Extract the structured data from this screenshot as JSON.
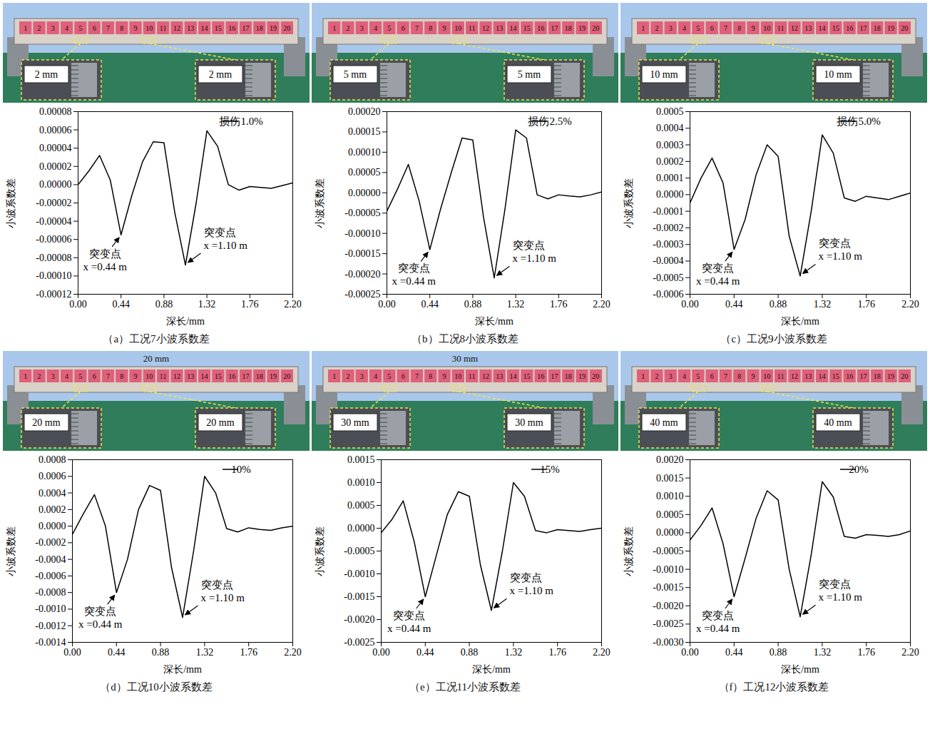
{
  "chart_data": [
    {
      "type": "line",
      "caption": "（a）工况7小波系数差",
      "x_label": "深长/mm",
      "y_label": "小波系数差",
      "x": [
        0,
        0.11,
        0.22,
        0.33,
        0.44,
        0.55,
        0.66,
        0.77,
        0.88,
        0.99,
        1.1,
        1.21,
        1.32,
        1.43,
        1.54,
        1.65,
        1.76,
        1.87,
        1.98,
        2.09,
        2.2
      ],
      "series": [
        {
          "name": "损伤1.0%",
          "color": "#000000",
          "values": [
            0.0,
            1.5e-05,
            3.2e-05,
            5e-06,
            -5.5e-05,
            -1.2e-05,
            2.5e-05,
            4.7e-05,
            4.6e-05,
            -3e-05,
            -8.8e-05,
            -2e-05,
            5.9e-05,
            4.2e-05,
            0.0,
            -6e-06,
            -2e-06,
            -3e-06,
            -4e-06,
            -1e-06,
            2e-06
          ]
        }
      ],
      "xlim": [
        0,
        2.2
      ],
      "xticks": [
        {
          "value": 0,
          "label": "0.00"
        },
        {
          "value": 0.44,
          "label": "0.44"
        },
        {
          "value": 0.88,
          "label": "0.88"
        },
        {
          "value": 1.32,
          "label": "1.32"
        },
        {
          "value": 1.76,
          "label": "1.76"
        },
        {
          "value": 2.2,
          "label": "2.20"
        }
      ],
      "ylim": [
        -0.00012,
        8e-05
      ],
      "yticks": [
        {
          "value": -0.00012,
          "label": "-0.00012"
        },
        {
          "value": -0.0001,
          "label": "-0.00010"
        },
        {
          "value": -8e-05,
          "label": "-0.00008"
        },
        {
          "value": -6e-05,
          "label": "-0.00006"
        },
        {
          "value": -4e-05,
          "label": "-0.00004"
        },
        {
          "value": -2e-05,
          "label": "-0.00002"
        },
        {
          "value": 0,
          "label": "0.00000"
        },
        {
          "value": 2e-05,
          "label": "0.00002"
        },
        {
          "value": 4e-05,
          "label": "0.00004"
        },
        {
          "value": 6e-05,
          "label": "0.00006"
        },
        {
          "value": 8e-05,
          "label": "0.00008"
        }
      ],
      "legend": "top-right",
      "annotations": [
        {
          "text": "突变点",
          "detail": "x =0.44 m",
          "x": 0.44
        },
        {
          "text": "突变点",
          "detail": "x =1.10 m",
          "x": 1.1
        }
      ],
      "photo": {
        "segments": [
          1,
          2,
          3,
          4,
          5,
          6,
          7,
          8,
          9,
          10,
          11,
          12,
          13,
          14,
          15,
          16,
          17,
          18,
          19,
          20
        ],
        "marked_segments": [
          5,
          10
        ],
        "inset_labels": [
          "2 mm",
          "2 mm"
        ]
      }
    },
    {
      "type": "line",
      "caption": "（b）工况8小波系数差",
      "x_label": "深长/mm",
      "y_label": "小波系数差",
      "x": [
        0,
        0.11,
        0.22,
        0.33,
        0.44,
        0.55,
        0.66,
        0.77,
        0.88,
        0.99,
        1.1,
        1.21,
        1.32,
        1.43,
        1.54,
        1.65,
        1.76,
        1.87,
        1.98,
        2.09,
        2.2
      ],
      "series": [
        {
          "name": "损伤2.5%",
          "color": "#000000",
          "values": [
            -4.5e-05,
            1e-05,
            7e-05,
            -2e-05,
            -0.00014,
            -4e-05,
            5e-05,
            0.000135,
            0.00013,
            -6e-05,
            -0.00021,
            -4e-05,
            0.000155,
            0.000135,
            -5e-06,
            -1.5e-05,
            -5e-06,
            -8e-06,
            -1e-05,
            -5e-06,
            2e-06
          ]
        }
      ],
      "xlim": [
        0,
        2.2
      ],
      "xticks": [
        {
          "value": 0,
          "label": "0.00"
        },
        {
          "value": 0.44,
          "label": "0.44"
        },
        {
          "value": 0.88,
          "label": "0.88"
        },
        {
          "value": 1.32,
          "label": "1.32"
        },
        {
          "value": 1.76,
          "label": "1.76"
        },
        {
          "value": 2.2,
          "label": "2.20"
        }
      ],
      "ylim": [
        -0.00025,
        0.0002
      ],
      "yticks": [
        {
          "value": -0.00025,
          "label": "-0.00025"
        },
        {
          "value": -0.0002,
          "label": "-0.00020"
        },
        {
          "value": -0.00015,
          "label": "-0.00015"
        },
        {
          "value": -0.0001,
          "label": "-0.00010"
        },
        {
          "value": -5e-05,
          "label": "-0.00005"
        },
        {
          "value": 0,
          "label": "0.00000"
        },
        {
          "value": 5e-05,
          "label": "0.00005"
        },
        {
          "value": 0.0001,
          "label": "0.00010"
        },
        {
          "value": 0.00015,
          "label": "0.00015"
        },
        {
          "value": 0.0002,
          "label": "0.00020"
        }
      ],
      "legend": "top-right",
      "annotations": [
        {
          "text": "突变点",
          "detail": "x =0.44 m",
          "x": 0.44
        },
        {
          "text": "突变点",
          "detail": "x =1.10 m",
          "x": 1.1
        }
      ],
      "photo": {
        "segments": [
          1,
          2,
          3,
          4,
          5,
          6,
          7,
          8,
          9,
          10,
          11,
          12,
          13,
          14,
          15,
          16,
          17,
          18,
          19,
          20
        ],
        "marked_segments": [
          5,
          10
        ],
        "inset_labels": [
          "5 mm",
          "5 mm"
        ]
      }
    },
    {
      "type": "line",
      "caption": "（c）工况9小波系数差",
      "x_label": "深长/mm",
      "y_label": "小波系数差",
      "x": [
        0,
        0.11,
        0.22,
        0.33,
        0.44,
        0.55,
        0.66,
        0.77,
        0.88,
        0.99,
        1.1,
        1.21,
        1.32,
        1.43,
        1.54,
        1.65,
        1.76,
        1.87,
        1.98,
        2.09,
        2.2
      ],
      "series": [
        {
          "name": "损伤5.0%",
          "color": "#000000",
          "values": [
            -5e-05,
            0.0001,
            0.00022,
            7e-05,
            -0.00033,
            -0.00015,
            0.00012,
            0.0003,
            0.00023,
            -0.00025,
            -0.00049,
            -0.0001,
            0.00036,
            0.00025,
            -2e-05,
            -4e-05,
            -1e-05,
            -2e-05,
            -3e-05,
            -1e-05,
            1e-05
          ]
        }
      ],
      "xlim": [
        0,
        2.2
      ],
      "xticks": [
        {
          "value": 0,
          "label": "0.00"
        },
        {
          "value": 0.44,
          "label": "0.44"
        },
        {
          "value": 0.88,
          "label": "0.88"
        },
        {
          "value": 1.32,
          "label": "1.32"
        },
        {
          "value": 1.76,
          "label": "1.76"
        },
        {
          "value": 2.2,
          "label": "2.20"
        }
      ],
      "ylim": [
        -0.0006,
        0.0005
      ],
      "yticks": [
        {
          "value": -0.0006,
          "label": "-0.0006"
        },
        {
          "value": -0.0005,
          "label": "-0.0005"
        },
        {
          "value": -0.0004,
          "label": "-0.0004"
        },
        {
          "value": -0.0003,
          "label": "-0.0003"
        },
        {
          "value": -0.0002,
          "label": "-0.0002"
        },
        {
          "value": -0.0001,
          "label": "-0.0001"
        },
        {
          "value": 0,
          "label": "0.0000"
        },
        {
          "value": 0.0001,
          "label": "0.0001"
        },
        {
          "value": 0.0002,
          "label": "0.0002"
        },
        {
          "value": 0.0003,
          "label": "0.0003"
        },
        {
          "value": 0.0004,
          "label": "0.0004"
        },
        {
          "value": 0.0005,
          "label": "0.0005"
        }
      ],
      "legend": "top-right",
      "annotations": [
        {
          "text": "突变点",
          "detail": "x =0.44 m",
          "x": 0.44
        },
        {
          "text": "突变点",
          "detail": "x =1.10 m",
          "x": 1.1
        }
      ],
      "photo": {
        "segments": [
          1,
          2,
          3,
          4,
          5,
          6,
          7,
          8,
          9,
          10,
          11,
          12,
          13,
          14,
          15,
          16,
          17,
          18,
          19,
          20
        ],
        "marked_segments": [
          5,
          10
        ],
        "inset_labels": [
          "10 mm",
          "10 mm"
        ]
      }
    },
    {
      "type": "line",
      "caption": "（d）工况10小波系数差",
      "x_label": "深长/mm",
      "y_label": "小波系数差",
      "x": [
        0,
        0.11,
        0.22,
        0.33,
        0.44,
        0.55,
        0.66,
        0.77,
        0.88,
        0.99,
        1.1,
        1.21,
        1.32,
        1.43,
        1.54,
        1.65,
        1.76,
        1.87,
        1.98,
        2.09,
        2.2
      ],
      "series": [
        {
          "name": "10%",
          "color": "#000000",
          "values": [
            -0.0001,
            0.00015,
            0.00038,
            0.0,
            -0.0008,
            -0.0004,
            0.0002,
            0.00049,
            0.00043,
            -0.0005,
            -0.0011,
            -0.0003,
            0.0006,
            0.0004,
            -3e-05,
            -7e-05,
            -2e-05,
            -4e-05,
            -5e-05,
            -2e-05,
            0.0
          ]
        }
      ],
      "xlim": [
        0,
        2.2
      ],
      "xticks": [
        {
          "value": 0,
          "label": "0.00"
        },
        {
          "value": 0.44,
          "label": "0.44"
        },
        {
          "value": 0.88,
          "label": "0.88"
        },
        {
          "value": 1.32,
          "label": "1.32"
        },
        {
          "value": 1.76,
          "label": "1.76"
        },
        {
          "value": 2.2,
          "label": "2.20"
        }
      ],
      "ylim": [
        -0.0014,
        0.0008
      ],
      "yticks": [
        {
          "value": -0.0014,
          "label": "-0.0014"
        },
        {
          "value": -0.0012,
          "label": "-0.0012"
        },
        {
          "value": -0.001,
          "label": "-0.0010"
        },
        {
          "value": -0.0008,
          "label": "-0.0008"
        },
        {
          "value": -0.0006,
          "label": "-0.0006"
        },
        {
          "value": -0.0004,
          "label": "-0.0004"
        },
        {
          "value": -0.0002,
          "label": "-0.0002"
        },
        {
          "value": 0,
          "label": "0.0000"
        },
        {
          "value": 0.0002,
          "label": "0.0002"
        },
        {
          "value": 0.0004,
          "label": "0.0004"
        },
        {
          "value": 0.0006,
          "label": "0.0006"
        },
        {
          "value": 0.0008,
          "label": "0.0008"
        }
      ],
      "legend": "top-right",
      "annotations": [
        {
          "text": "突变点",
          "detail": "x =0.44 m",
          "x": 0.44
        },
        {
          "text": "突变点",
          "detail": "x =1.10 m",
          "x": 1.1
        }
      ],
      "photo": {
        "segments": [
          1,
          2,
          3,
          4,
          5,
          6,
          7,
          8,
          9,
          10,
          11,
          12,
          13,
          14,
          15,
          16,
          17,
          18,
          19,
          20
        ],
        "marked_segments": [
          5,
          10
        ],
        "inset_labels": [
          "20 mm",
          "20 mm"
        ],
        "top_label": "20 mm"
      }
    },
    {
      "type": "line",
      "caption": "（e）工况11小波系数差",
      "x_label": "深长/mm",
      "y_label": "小波系数差",
      "x": [
        0,
        0.11,
        0.22,
        0.33,
        0.44,
        0.55,
        0.66,
        0.77,
        0.88,
        0.99,
        1.1,
        1.21,
        1.32,
        1.43,
        1.54,
        1.65,
        1.76,
        1.87,
        1.98,
        2.09,
        2.2
      ],
      "series": [
        {
          "name": "15%",
          "color": "#000000",
          "values": [
            -0.0001,
            0.0002,
            0.0006,
            -0.0003,
            -0.0015,
            -0.0006,
            0.0003,
            0.0008,
            0.0007,
            -0.0008,
            -0.0018,
            -0.0005,
            0.001,
            0.0007,
            -5e-05,
            -0.0001,
            -3e-05,
            -5e-05,
            -7e-05,
            -3e-05,
            0.0
          ]
        }
      ],
      "xlim": [
        0,
        2.2
      ],
      "xticks": [
        {
          "value": 0,
          "label": "0.00"
        },
        {
          "value": 0.44,
          "label": "0.44"
        },
        {
          "value": 0.88,
          "label": "0.88"
        },
        {
          "value": 1.32,
          "label": "1.32"
        },
        {
          "value": 1.76,
          "label": "1.76"
        },
        {
          "value": 2.2,
          "label": "2.20"
        }
      ],
      "ylim": [
        -0.0025,
        0.0015
      ],
      "yticks": [
        {
          "value": -0.0025,
          "label": "-0.0025"
        },
        {
          "value": -0.002,
          "label": "-0.0020"
        },
        {
          "value": -0.0015,
          "label": "-0.0015"
        },
        {
          "value": -0.001,
          "label": "-0.0010"
        },
        {
          "value": -0.0005,
          "label": "-0.0005"
        },
        {
          "value": 0,
          "label": "0.0000"
        },
        {
          "value": 0.0005,
          "label": "0.0005"
        },
        {
          "value": 0.001,
          "label": "0.0010"
        },
        {
          "value": 0.0015,
          "label": "0.0015"
        }
      ],
      "legend": "top-right",
      "annotations": [
        {
          "text": "突变点",
          "detail": "x =0.44 m",
          "x": 0.44
        },
        {
          "text": "突变点",
          "detail": "x =1.10 m",
          "x": 1.1
        }
      ],
      "photo": {
        "segments": [
          1,
          2,
          3,
          4,
          5,
          6,
          7,
          8,
          9,
          10,
          11,
          12,
          13,
          14,
          15,
          16,
          17,
          18,
          19,
          20
        ],
        "marked_segments": [
          5,
          10
        ],
        "inset_labels": [
          "30 mm",
          "30 mm"
        ],
        "top_label": "30 mm"
      }
    },
    {
      "type": "line",
      "caption": "（f）工况12小波系数差",
      "x_label": "深长/mm",
      "y_label": "小波系数差",
      "x": [
        0,
        0.11,
        0.22,
        0.33,
        0.44,
        0.55,
        0.66,
        0.77,
        0.88,
        0.99,
        1.1,
        1.21,
        1.32,
        1.43,
        1.54,
        1.65,
        1.76,
        1.87,
        1.98,
        2.09,
        2.2
      ],
      "series": [
        {
          "name": "20%",
          "color": "#000000",
          "values": [
            -0.0002,
            0.0002,
            0.00068,
            -0.0003,
            -0.00175,
            -0.0007,
            0.0004,
            0.00115,
            0.0009,
            -0.001,
            -0.0023,
            -0.0006,
            0.0014,
            0.00098,
            -0.0001,
            -0.00015,
            -5e-05,
            -7e-05,
            -0.0001,
            -5e-05,
            5e-05
          ]
        }
      ],
      "xlim": [
        0,
        2.2
      ],
      "xticks": [
        {
          "value": 0,
          "label": "0.00"
        },
        {
          "value": 0.44,
          "label": "0.44"
        },
        {
          "value": 0.88,
          "label": "0.88"
        },
        {
          "value": 1.32,
          "label": "1.32"
        },
        {
          "value": 1.76,
          "label": "1.76"
        },
        {
          "value": 2.2,
          "label": "2.20"
        }
      ],
      "ylim": [
        -0.003,
        0.002
      ],
      "yticks": [
        {
          "value": -0.003,
          "label": "-0.0030"
        },
        {
          "value": -0.0025,
          "label": "-0.0025"
        },
        {
          "value": -0.002,
          "label": "-0.0020"
        },
        {
          "value": -0.0015,
          "label": "-0.0015"
        },
        {
          "value": -0.001,
          "label": "-0.0010"
        },
        {
          "value": -0.0005,
          "label": "-0.0005"
        },
        {
          "value": 0,
          "label": "0.0000"
        },
        {
          "value": 0.0005,
          "label": "0.0005"
        },
        {
          "value": 0.001,
          "label": "0.0010"
        },
        {
          "value": 0.0015,
          "label": "0.0015"
        },
        {
          "value": 0.002,
          "label": "0.0020"
        }
      ],
      "legend": "top-right",
      "annotations": [
        {
          "text": "突变点",
          "detail": "x =0.44 m",
          "x": 0.44
        },
        {
          "text": "突变点",
          "detail": "x =1.10 m",
          "x": 1.1
        }
      ],
      "photo": {
        "segments": [
          1,
          2,
          3,
          4,
          5,
          6,
          7,
          8,
          9,
          10,
          11,
          12,
          13,
          14,
          15,
          16,
          17,
          18,
          19,
          20
        ],
        "marked_segments": [
          5,
          10
        ],
        "inset_labels": [
          "40 mm",
          "40 mm"
        ]
      }
    }
  ]
}
